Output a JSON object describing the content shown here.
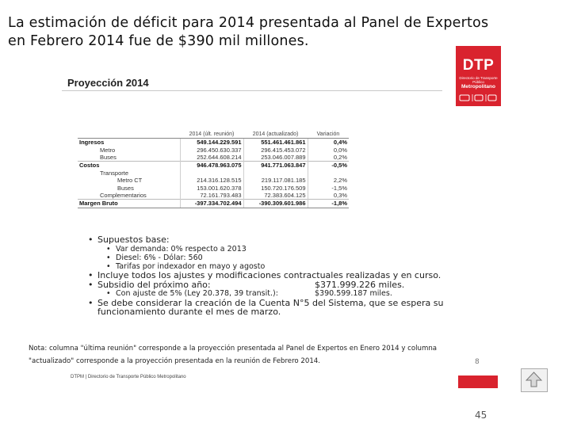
{
  "slide": {
    "title": "La estimación de déficit para 2014 presentada al Panel de Expertos en Febrero 2014 fue de $390 mil millones.",
    "section_title": "Proyección 2014",
    "page_label": "8",
    "page_number": "45",
    "footer_text": "DTPM | Directorio de Transporte Público Metropolitano"
  },
  "logo": {
    "text": "DTP",
    "subtitle": "Directorio de Transporte Público",
    "metro": "Metropolitano",
    "color": "#d9232e"
  },
  "table": {
    "headers": [
      "",
      "2014 (últ. reunión)",
      "2014 (actualizado)",
      "Variación"
    ],
    "rows": [
      {
        "label": "Ingresos",
        "v1": "549.144.229.591",
        "v2": "551.461.461.861",
        "v3": "0,4%"
      },
      {
        "label": "Metro",
        "v1": "296.450.630.337",
        "v2": "296.415.453.072",
        "v3": "0,0%"
      },
      {
        "label": "Buses",
        "v1": "252.644.608.214",
        "v2": "253.046.007.889",
        "v3": "0,2%"
      },
      {
        "label": "Costos",
        "v1": "946.478.963.075",
        "v2": "941.771.063.847",
        "v3": "-0,5%"
      },
      {
        "label": "Transporte",
        "v1": "",
        "v2": "",
        "v3": ""
      },
      {
        "label": "Metro CT",
        "v1": "214.316.128.515",
        "v2": "219.117.081.185",
        "v3": "2,2%"
      },
      {
        "label": "Buses",
        "v1": "153.001.620.378",
        "v2": "150.720.176.509",
        "v3": "-1,5%"
      },
      {
        "label": "Complementarios",
        "v1": "72.161.793.483",
        "v2": "72.383.604.125",
        "v3": "0,3%"
      },
      {
        "label": "Margen Bruto",
        "v1": "-397.334.702.494",
        "v2": "-390.309.601.986",
        "v3": "-1,8%"
      }
    ]
  },
  "notes": {
    "supuestos": "Supuestos base:",
    "sub": [
      "Var demanda: 0% respecto a 2013",
      "Diesel: 6% - Dólar: 560",
      "Tarifas por indexador en mayo y agosto"
    ],
    "ajustes": "Incluye todos los ajustes y modificaciones contractuales realizadas y en curso.",
    "subsidio_label": "Subsidio del próximo año:",
    "subsidio_value": "$371.999.226 miles.",
    "ajuste_label": "Con ajuste de 5% (Ley 20.378, 39 transit.):",
    "ajuste_value": "$390.599.187 miles.",
    "cuenta": "Se debe considerar la creación de la Cuenta N°5 del Sistema, que se espera su funcionamiento durante el mes de marzo."
  },
  "footnote": {
    "line1": "Nota: columna \"última reunión\" corresponde a la proyección presentada al Panel de Expertos en Enero 2014 y columna",
    "line2": "\"actualizado\" corresponde a la proyección presentada en la reunión de Febrero 2014."
  }
}
